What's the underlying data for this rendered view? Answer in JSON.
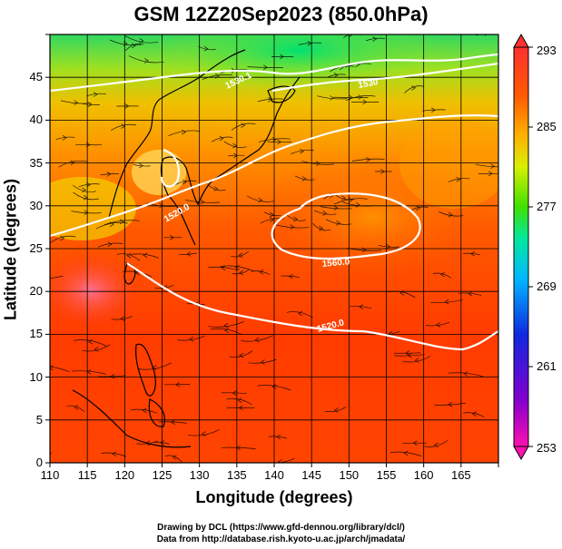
{
  "title": "GSM 12Z20Sep2023 (850.0hPa)",
  "xlabel": "Longitude (degrees)",
  "ylabel": "Latitude  (degrees)",
  "x_ticks": [
    "110",
    "115",
    "120",
    "125",
    "130",
    "135",
    "140",
    "145",
    "150",
    "155",
    "160",
    "165"
  ],
  "y_ticks": [
    "0",
    "5",
    "10",
    "15",
    "20",
    "25",
    "30",
    "35",
    "40",
    "45"
  ],
  "colorbar": {
    "ticks": [
      "293",
      "285",
      "277",
      "269",
      "261",
      "253"
    ],
    "min": 253,
    "max": 293,
    "colors": [
      "#ff00a0",
      "#7000c0",
      "#1030e0",
      "#00b8ff",
      "#00f0a0",
      "#60e000",
      "#f0ff00",
      "#ffb000",
      "#ff6000",
      "#ff2800",
      "#ff6080"
    ]
  },
  "contour_labels": {
    "upper_left": "1530.1",
    "upper_right": "1530",
    "left_mid": "1520.0",
    "center": "1560.0",
    "lower": "1520.0"
  },
  "credits": {
    "line1": "Drawing by DCL (https://www.gfd-dennou.org/library/dcl/)",
    "line2": "Data from http://database.rish.kyoto-u.ac.jp/arch/jmadata/"
  },
  "chart_data": {
    "type": "heatmap",
    "title": "GSM 12Z20Sep2023 (850.0hPa)",
    "xlabel": "Longitude (degrees)",
    "ylabel": "Latitude  (degrees)",
    "xlim": [
      110,
      170
    ],
    "ylim": [
      0,
      50
    ],
    "field": "temperature (shaded), geopotential height contours (white), wind streamlines (black)",
    "value_range": [
      253,
      293
    ],
    "contours": [
      "1520.0",
      "1530.1",
      "1560.0"
    ]
  }
}
